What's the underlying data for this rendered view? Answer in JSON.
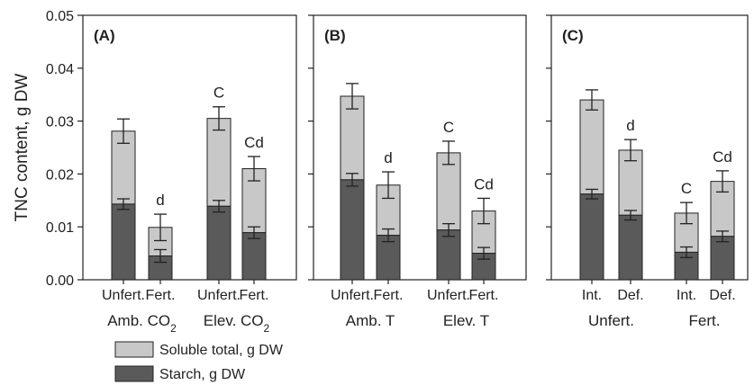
{
  "chart_data": {
    "type": "bar",
    "stacked": true,
    "ylabel": "TNC content, g DW",
    "ylim": [
      0,
      0.05
    ],
    "yticks": [
      "0.00",
      "0.01",
      "0.02",
      "0.03",
      "0.04",
      "0.05"
    ],
    "legend": {
      "placement": "bottom-left",
      "items": [
        {
          "label": "Soluble total, g DW",
          "color": "#c8c8c8"
        },
        {
          "label": "Starch, g DW",
          "color": "#5a5a5a"
        }
      ]
    },
    "colors": {
      "soluble": "#c8c8c8",
      "starch": "#5a5a5a"
    },
    "panels": [
      {
        "label": "(A)",
        "bars": [
          {
            "category": "Unfert.",
            "starch": 0.0143,
            "starch_err": 0.001,
            "total": 0.0281,
            "total_err": 0.0023,
            "annotation": ""
          },
          {
            "category": "Fert.",
            "starch": 0.0045,
            "starch_err": 0.0012,
            "total": 0.0099,
            "total_err": 0.0025,
            "annotation": "d"
          },
          {
            "category": "Unfert.",
            "starch": 0.0139,
            "starch_err": 0.0011,
            "total": 0.0305,
            "total_err": 0.0022,
            "annotation": "C"
          },
          {
            "category": "Fert.",
            "starch": 0.0089,
            "starch_err": 0.0011,
            "total": 0.021,
            "total_err": 0.0023,
            "annotation": "Cd"
          }
        ],
        "groups": [
          {
            "label": "Amb. CO",
            "sub": "2"
          },
          {
            "label": "Elev. CO",
            "sub": "2"
          }
        ]
      },
      {
        "label": "(B)",
        "bars": [
          {
            "category": "Unfert.",
            "starch": 0.0189,
            "starch_err": 0.0012,
            "total": 0.0347,
            "total_err": 0.0024,
            "annotation": ""
          },
          {
            "category": "Fert.",
            "starch": 0.0084,
            "starch_err": 0.0012,
            "total": 0.0179,
            "total_err": 0.0025,
            "annotation": "d"
          },
          {
            "category": "Unfert.",
            "starch": 0.0094,
            "starch_err": 0.0012,
            "total": 0.024,
            "total_err": 0.0022,
            "annotation": "C"
          },
          {
            "category": "Fert.",
            "starch": 0.005,
            "starch_err": 0.0011,
            "total": 0.013,
            "total_err": 0.0024,
            "annotation": "Cd"
          }
        ],
        "groups": [
          {
            "label": "Amb. T",
            "sub": ""
          },
          {
            "label": "Elev. T",
            "sub": ""
          }
        ]
      },
      {
        "label": "(C)",
        "bars": [
          {
            "category": "Int.",
            "starch": 0.0162,
            "starch_err": 0.0009,
            "total": 0.034,
            "total_err": 0.0019,
            "annotation": ""
          },
          {
            "category": "Def.",
            "starch": 0.0122,
            "starch_err": 0.0009,
            "total": 0.0245,
            "total_err": 0.002,
            "annotation": "d"
          },
          {
            "category": "Int.",
            "starch": 0.0052,
            "starch_err": 0.001,
            "total": 0.0126,
            "total_err": 0.002,
            "annotation": "C"
          },
          {
            "category": "Def.",
            "starch": 0.0082,
            "starch_err": 0.001,
            "total": 0.0186,
            "total_err": 0.002,
            "annotation": "Cd"
          }
        ],
        "groups": [
          {
            "label": "Unfert.",
            "sub": ""
          },
          {
            "label": "Fert.",
            "sub": ""
          }
        ]
      }
    ]
  }
}
